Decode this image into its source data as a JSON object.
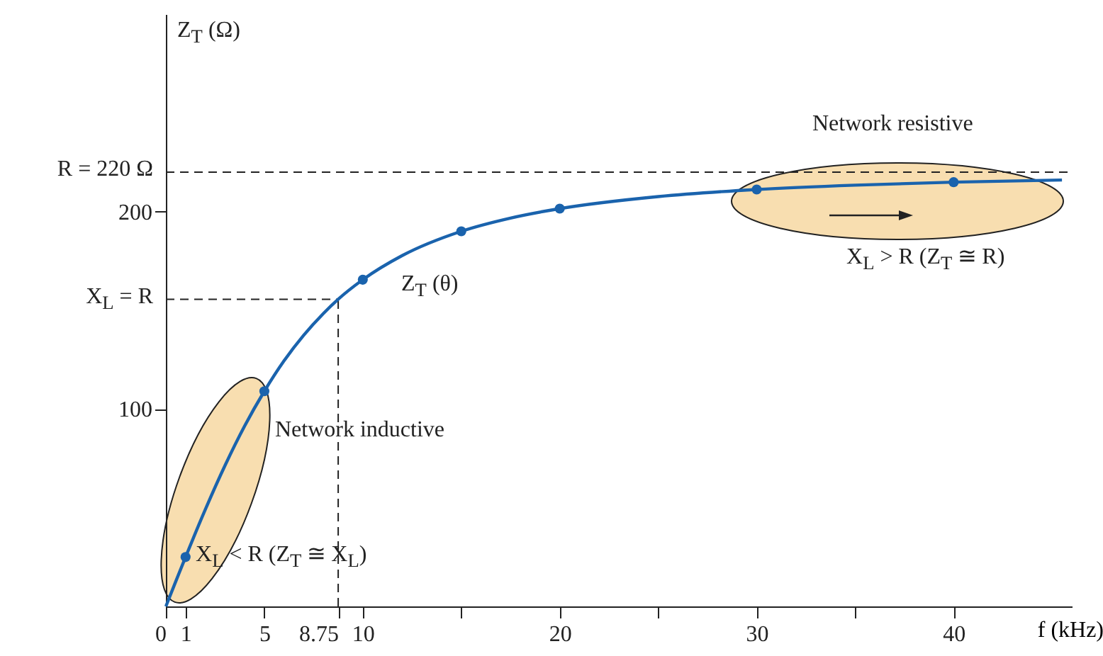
{
  "chart_data": {
    "type": "line",
    "xlabel": "f (kHz)",
    "ylabel": "Z$_{T}$ (Ω)",
    "xlim": [
      0,
      46
    ],
    "ylim": [
      0,
      300
    ],
    "xticks": [
      0,
      1,
      5,
      8.75,
      10,
      {
        "value": 15,
        "label": null
      },
      20,
      {
        "value": 25,
        "label": null
      },
      30,
      {
        "value": 35,
        "label": null
      },
      40
    ],
    "yticks": [
      100,
      200
    ],
    "grid": false,
    "series": [
      {
        "color": "#1a63ad",
        "marker": "none",
        "line_style": "solid",
        "x": [
          0,
          0.5,
          1,
          2,
          3,
          4,
          5,
          6,
          7,
          8,
          8.75,
          10,
          12,
          15,
          17.5,
          20,
          25,
          30,
          35,
          40,
          45.5
        ],
        "values": [
          0,
          12.6,
          25,
          49,
          71.3,
          91.4,
          109,
          124.4,
          137.4,
          148.4,
          155.6,
          165.5,
          177.7,
          190,
          196.7,
          201.5,
          207.6,
          211.2,
          213.4,
          214.9,
          216
        ]
      },
      {
        "type": "scatter",
        "color": "#1a63ad",
        "marker": "circle",
        "x": [
          1,
          5,
          10,
          15,
          20,
          30,
          40
        ],
        "values": [
          25,
          109,
          165.5,
          190,
          201.5,
          211.2,
          214.9
        ]
      }
    ],
    "ref_lines": [
      {
        "axis": "y",
        "value": 220,
        "label": "R = 220 Ω",
        "line_style": "dashed"
      },
      {
        "axis": "y",
        "value": 155.6,
        "label": "X$_{L}$ = R",
        "line_style": "dashed"
      },
      {
        "axis": "x",
        "value": 8.75,
        "line_style": "dashed"
      }
    ],
    "annotations": [
      "Z$_{T}$ (θ)",
      "Network inductive",
      "X$_{L}$ < R (Z$_{T}$ ≅ X$_{L}$)",
      "Network resistive",
      "X$_{L}$ > R (Z$_{T}$ ≅ R)"
    ]
  }
}
